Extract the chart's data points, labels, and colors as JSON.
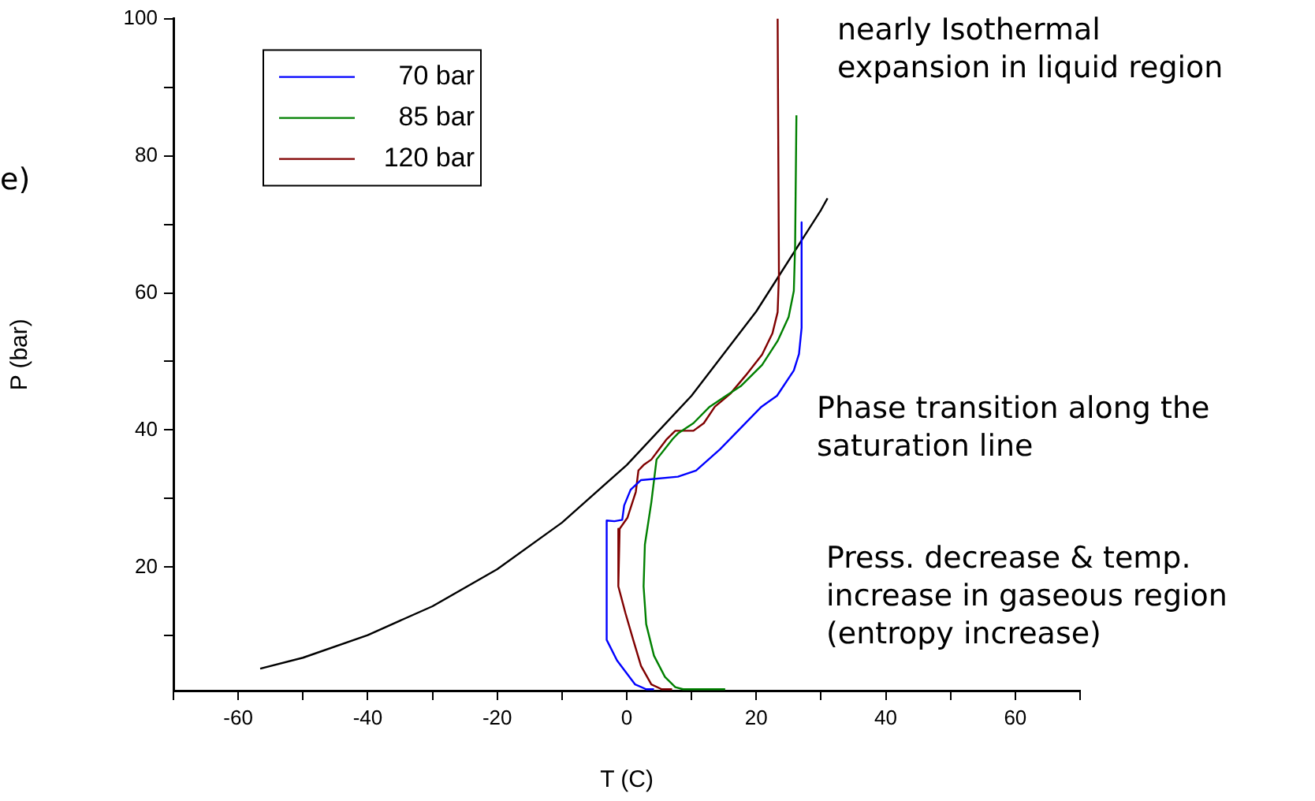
{
  "chart_data": {
    "type": "line",
    "xlabel": "T (C)",
    "ylabel": "P (bar)",
    "xlim": [
      -70,
      70
    ],
    "ylim": [
      2,
      100
    ],
    "xticks": [
      {
        "value": -70,
        "label": null
      },
      -60,
      {
        "value": -50,
        "label": null
      },
      -40,
      {
        "value": -30,
        "label": null
      },
      -20,
      {
        "value": -10,
        "label": null
      },
      0,
      {
        "value": 10,
        "label": null
      },
      20,
      {
        "value": 30,
        "label": null
      },
      40,
      {
        "value": 50,
        "label": null
      },
      60,
      {
        "value": 70,
        "label": null
      }
    ],
    "yticks": [
      {
        "value": 10,
        "label": null
      },
      20,
      {
        "value": 30,
        "label": null
      },
      40,
      {
        "value": 50,
        "label": null
      },
      60,
      {
        "value": 70,
        "label": null
      },
      80,
      {
        "value": 90,
        "label": null
      },
      100
    ],
    "grid": false,
    "legend": "top left",
    "marker": "none",
    "line_style": "solid",
    "series": [
      {
        "name": "70 bar",
        "color": "#0000ff",
        "x": [
          27.0,
          27.0,
          26.6,
          25.8,
          23.2,
          20.8,
          17.6,
          14.4,
          10.7,
          7.9,
          2.2,
          0.6,
          -0.4,
          -0.7,
          -1.9,
          -3.1,
          -3.1,
          -1.5,
          1.3,
          3.0,
          4.2
        ],
        "values": [
          70.3,
          54.9,
          51.1,
          48.7,
          45.0,
          43.4,
          40.3,
          37.2,
          34.1,
          33.2,
          32.7,
          31.3,
          29.0,
          26.9,
          26.7,
          26.8,
          9.4,
          6.4,
          2.9,
          2.2,
          2.2
        ]
      },
      {
        "name": "85 bar",
        "color": "#008000",
        "x": [
          26.2,
          26.0,
          25.8,
          25.0,
          23.3,
          20.9,
          17.6,
          15.2,
          12.8,
          10.3,
          7.9,
          7.1,
          4.6,
          3.8,
          2.8,
          2.6,
          3.0,
          4.2,
          5.9,
          7.5,
          8.7,
          15.2
        ],
        "values": [
          85.9,
          67.0,
          60.3,
          56.5,
          53.0,
          49.5,
          46.4,
          44.9,
          43.4,
          41.0,
          39.5,
          38.7,
          35.7,
          29.5,
          23.3,
          17.2,
          11.7,
          7.1,
          4.0,
          2.5,
          2.2,
          2.2
        ]
      },
      {
        "name": "120 bar",
        "color": "#800000",
        "x": [
          23.3,
          23.5,
          23.3,
          22.5,
          20.9,
          18.4,
          16.0,
          13.6,
          11.9,
          10.3,
          8.3,
          7.5,
          6.2,
          5.0,
          3.8,
          2.6,
          1.8,
          1.4,
          0.1,
          -1.1,
          -1.3,
          -0.2,
          1.0,
          2.2,
          3.8,
          5.4,
          7.0
        ],
        "values": [
          100,
          62.6,
          57.2,
          54.1,
          51.0,
          48.0,
          45.3,
          43.4,
          41.0,
          39.9,
          39.9,
          39.9,
          38.7,
          37.2,
          35.7,
          34.9,
          34.1,
          31.0,
          27.2,
          25.6,
          17.2,
          13.3,
          9.4,
          5.6,
          2.9,
          2.2,
          2.2
        ]
      },
      {
        "color": "#000000",
        "x": [
          -56.6,
          -50,
          -40,
          -30,
          -20,
          -10,
          0,
          10,
          20,
          30,
          31
        ],
        "values": [
          5.2,
          6.8,
          10.1,
          14.3,
          19.7,
          26.5,
          34.9,
          45.0,
          57.3,
          72.1,
          73.8
        ]
      }
    ],
    "annotations": [
      "e)",
      "nearly Isothermal\nexpansion in liquid region",
      "Phase transition along the\nsaturation line",
      "Press. decrease & temp.\nincrease in gaseous region\n(entropy increase)"
    ]
  }
}
